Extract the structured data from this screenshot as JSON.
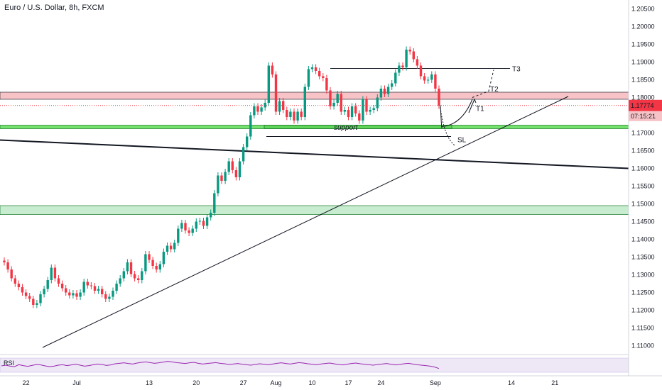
{
  "chart_data": {
    "type": "candlestick",
    "title": "Euro / U.S. Dollar, 8h, FXCM",
    "ylim": [
      1.1075,
      1.2075
    ],
    "y_ticks": [
      "1.20500",
      "1.20000",
      "1.19500",
      "1.19000",
      "1.18500",
      "1.18000",
      "1.17500",
      "1.17000",
      "1.16500",
      "1.16000",
      "1.15500",
      "1.15000",
      "1.14500",
      "1.14000",
      "1.13500",
      "1.13000",
      "1.12500",
      "1.12000",
      "1.11500",
      "1.11000"
    ],
    "y_tick_values": [
      1.205,
      1.2,
      1.195,
      1.19,
      1.185,
      1.18,
      1.175,
      1.17,
      1.165,
      1.16,
      1.155,
      1.15,
      1.145,
      1.14,
      1.135,
      1.13,
      1.125,
      1.12,
      1.115,
      1.11
    ],
    "x_labels": [
      "22",
      "Jul",
      "13",
      "20",
      "27",
      "Aug",
      "10",
      "17",
      "24",
      "Sep",
      "14",
      "21"
    ],
    "x_label_index": [
      6,
      20,
      40,
      53,
      66,
      75,
      85,
      95,
      104,
      119,
      140,
      152
    ],
    "last_price": {
      "label": "1.17774",
      "value": 1.17774,
      "countdown": "07:15:21"
    },
    "candle_colors": {
      "up": "#089981",
      "down": "#f23645"
    },
    "close": [
      1.1335,
      1.1315,
      1.129,
      1.1275,
      1.1265,
      1.125,
      1.124,
      1.1232,
      1.1215,
      1.122,
      1.1245,
      1.126,
      1.1285,
      1.132,
      1.129,
      1.1275,
      1.1262,
      1.125,
      1.1242,
      1.1248,
      1.1238,
      1.125,
      1.128,
      1.127,
      1.1268,
      1.1255,
      1.126,
      1.1245,
      1.1232,
      1.1238,
      1.1255,
      1.1275,
      1.129,
      1.131,
      1.1335,
      1.1302,
      1.129,
      1.1285,
      1.131,
      1.1358,
      1.1342,
      1.1325,
      1.1315,
      1.133,
      1.1365,
      1.1382,
      1.1372,
      1.139,
      1.143,
      1.1446,
      1.1425,
      1.1418,
      1.143,
      1.145,
      1.1452,
      1.1438,
      1.1462,
      1.1475,
      1.153,
      1.158,
      1.1565,
      1.159,
      1.162,
      1.1595,
      1.1575,
      1.162,
      1.166,
      1.169,
      1.175,
      1.1775,
      1.176,
      1.1772,
      1.1785,
      1.189,
      1.1865,
      1.176,
      1.179,
      1.1765,
      1.1745,
      1.176,
      1.1735,
      1.176,
      1.1745,
      1.183,
      1.188,
      1.1885,
      1.1875,
      1.186,
      1.1855,
      1.182,
      1.1775,
      1.1785,
      1.181,
      1.176,
      1.1765,
      1.1745,
      1.1775,
      1.1755,
      1.1735,
      1.1795,
      1.176,
      1.1765,
      1.177,
      1.18,
      1.1825,
      1.181,
      1.183,
      1.184,
      1.187,
      1.189,
      1.1885,
      1.1935,
      1.193,
      1.1908,
      1.189,
      1.186,
      1.1848,
      1.185,
      1.1865,
      1.1825,
      1.1777
    ],
    "rsi": {
      "label": "RSI",
      "values": [
        47,
        50,
        46,
        44,
        52,
        48,
        45,
        49,
        53,
        51,
        47,
        44,
        46,
        50,
        52,
        48,
        51,
        54,
        50,
        46,
        48,
        52,
        55,
        53,
        49,
        51,
        56,
        58,
        60,
        57,
        55,
        59,
        62,
        64,
        61,
        58,
        60,
        63,
        66,
        64,
        61,
        59,
        57,
        60,
        62,
        58,
        55,
        57,
        59,
        61,
        58,
        56,
        53,
        55,
        57,
        54,
        52,
        50,
        53,
        56,
        54,
        52,
        55,
        58,
        60,
        57,
        55,
        58,
        61,
        59,
        56,
        54,
        52,
        55,
        57,
        59,
        56,
        53,
        51,
        54,
        57,
        59,
        56,
        54,
        52,
        50,
        53,
        55,
        57,
        54,
        51,
        53,
        56,
        58,
        55,
        52,
        50,
        48,
        46,
        42,
        36
      ]
    },
    "annotations": {
      "support": "support",
      "t1": "T1",
      "t2": "T2",
      "t3": "T3",
      "sl": "SL"
    },
    "zones": [
      {
        "name": "resistance",
        "from": 1.1795,
        "to": 1.1815,
        "color": "#f7c3c6"
      },
      {
        "name": "support",
        "from": 1.1712,
        "to": 1.1722,
        "color": "#74e06d"
      },
      {
        "name": "lower-support",
        "from": 1.147,
        "to": 1.1495,
        "color": "#c8ecd0"
      }
    ]
  }
}
